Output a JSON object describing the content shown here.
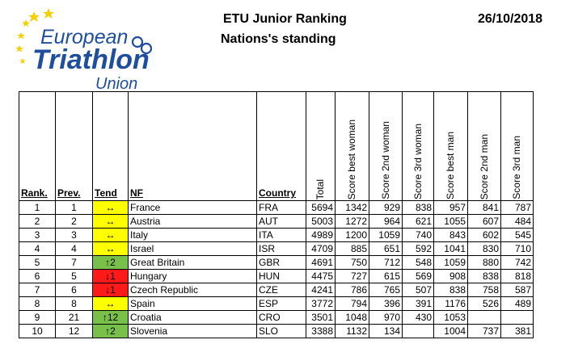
{
  "logo": {
    "line1": "European",
    "line2": "Triathlon",
    "line3": "Union",
    "colors": {
      "text": "#1f4e9c",
      "stars": "#f5d000"
    }
  },
  "header": {
    "title": "ETU Junior Ranking",
    "subtitle": "Nations's standing",
    "date": "26/10/2018"
  },
  "table": {
    "columns": {
      "rank": "Rank.",
      "prev": "Prev.",
      "tend": "Tend",
      "nf": "NF",
      "country": "Country",
      "total": "Total",
      "best_woman": "Score best woman",
      "second_woman": "Score 2nd woman",
      "third_woman": "Score 3rd woman",
      "best_man": "Score best man",
      "second_man": "Score 2nd man",
      "third_man": "Score 3rd man"
    },
    "tend_colors": {
      "same": "#ffff00",
      "up": "#79c04a",
      "down": "#ff1a1a"
    },
    "rows": [
      {
        "rank": "1",
        "prev": "1",
        "tend": "↔",
        "trend": "same",
        "nf": "France",
        "country": "FRA",
        "total": "5694",
        "w1": "1342",
        "w2": "929",
        "w3": "838",
        "m1": "957",
        "m2": "841",
        "m3": "787"
      },
      {
        "rank": "2",
        "prev": "2",
        "tend": "↔",
        "trend": "same",
        "nf": "Austria",
        "country": "AUT",
        "total": "5003",
        "w1": "1272",
        "w2": "964",
        "w3": "621",
        "m1": "1055",
        "m2": "607",
        "m3": "484"
      },
      {
        "rank": "3",
        "prev": "3",
        "tend": "↔",
        "trend": "same",
        "nf": "Italy",
        "country": "ITA",
        "total": "4989",
        "w1": "1200",
        "w2": "1059",
        "w3": "740",
        "m1": "843",
        "m2": "602",
        "m3": "545"
      },
      {
        "rank": "4",
        "prev": "4",
        "tend": "↔",
        "trend": "same",
        "nf": "Israel",
        "country": "ISR",
        "total": "4709",
        "w1": "885",
        "w2": "651",
        "w3": "592",
        "m1": "1041",
        "m2": "830",
        "m3": "710"
      },
      {
        "rank": "5",
        "prev": "7",
        "tend": "↑2",
        "trend": "up",
        "nf": "Great Britain",
        "country": "GBR",
        "total": "4691",
        "w1": "750",
        "w2": "712",
        "w3": "548",
        "m1": "1059",
        "m2": "880",
        "m3": "742"
      },
      {
        "rank": "6",
        "prev": "5",
        "tend": "↓1",
        "trend": "down",
        "nf": "Hungary",
        "country": "HUN",
        "total": "4475",
        "w1": "727",
        "w2": "615",
        "w3": "569",
        "m1": "908",
        "m2": "838",
        "m3": "818"
      },
      {
        "rank": "7",
        "prev": "6",
        "tend": "↓1",
        "trend": "down",
        "nf": "Czech Republic",
        "country": "CZE",
        "total": "4241",
        "w1": "786",
        "w2": "765",
        "w3": "507",
        "m1": "838",
        "m2": "758",
        "m3": "587"
      },
      {
        "rank": "8",
        "prev": "8",
        "tend": "↔",
        "trend": "same",
        "nf": "Spain",
        "country": "ESP",
        "total": "3772",
        "w1": "794",
        "w2": "396",
        "w3": "391",
        "m1": "1176",
        "m2": "526",
        "m3": "489"
      },
      {
        "rank": "9",
        "prev": "21",
        "tend": "↑12",
        "trend": "up",
        "nf": "Croatia",
        "country": "CRO",
        "total": "3501",
        "w1": "1048",
        "w2": "970",
        "w3": "430",
        "m1": "1053",
        "m2": "",
        "m3": ""
      },
      {
        "rank": "10",
        "prev": "12",
        "tend": "↑2",
        "trend": "up",
        "nf": "Slovenia",
        "country": "SLO",
        "total": "3388",
        "w1": "1132",
        "w2": "134",
        "w3": "",
        "m1": "1004",
        "m2": "737",
        "m3": "381"
      }
    ]
  }
}
